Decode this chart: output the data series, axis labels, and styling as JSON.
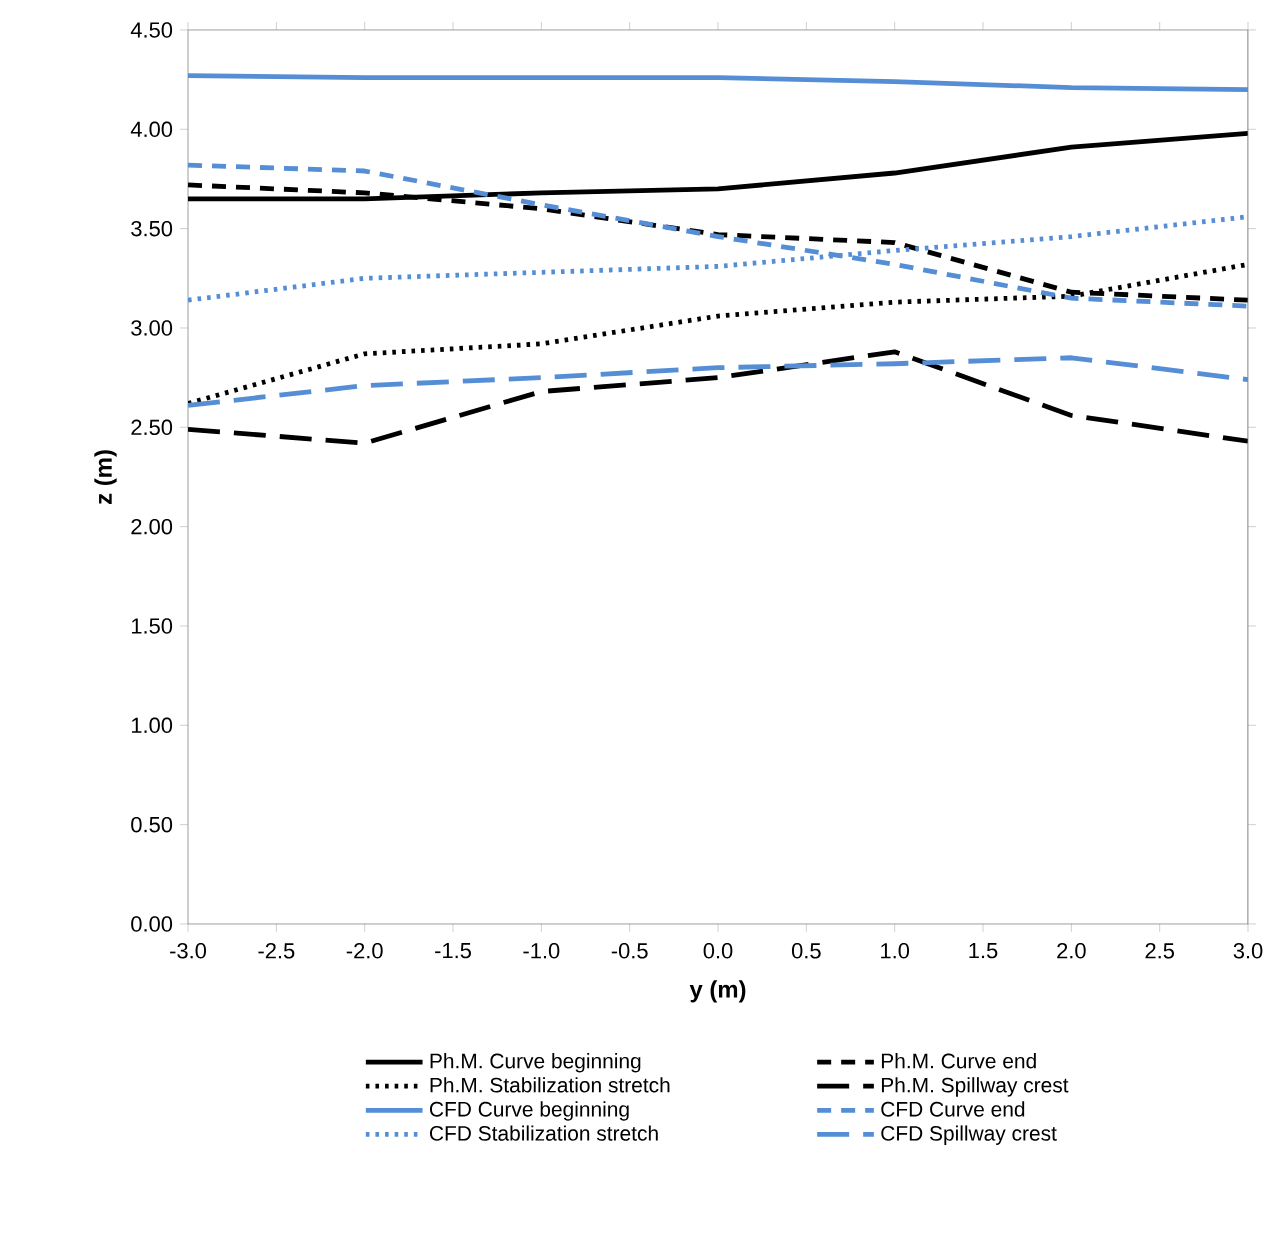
{
  "chart_data": {
    "type": "line",
    "xlabel": "y (m)",
    "ylabel": "z (m)",
    "x": [
      -3,
      -2,
      -1,
      0,
      1,
      2,
      3
    ],
    "xlim": [
      -3,
      3
    ],
    "ylim": [
      0,
      4.5
    ],
    "xticks": [
      {
        "value": -3,
        "label": "-3.0"
      },
      {
        "value": -2.5,
        "label": "-2.5"
      },
      {
        "value": -2,
        "label": "-2.0"
      },
      {
        "value": -1.5,
        "label": "-1.5"
      },
      {
        "value": -1,
        "label": "-1.0"
      },
      {
        "value": -0.5,
        "label": "-0.5"
      },
      {
        "value": 0,
        "label": "0.0"
      },
      {
        "value": 0.5,
        "label": "0.5"
      },
      {
        "value": 1,
        "label": "1.0"
      },
      {
        "value": 1.5,
        "label": "1.5"
      },
      {
        "value": 2,
        "label": "2.0"
      },
      {
        "value": 2.5,
        "label": "2.5"
      },
      {
        "value": 3,
        "label": "3.0"
      }
    ],
    "yticks": [
      {
        "value": 0,
        "label": "0.00"
      },
      {
        "value": 0.5,
        "label": "0.50"
      },
      {
        "value": 1,
        "label": "1.00"
      },
      {
        "value": 1.5,
        "label": "1.50"
      },
      {
        "value": 2,
        "label": "2.00"
      },
      {
        "value": 2.5,
        "label": "2.50"
      },
      {
        "value": 3,
        "label": "3.00"
      },
      {
        "value": 3.5,
        "label": "3.50"
      },
      {
        "value": 4,
        "label": "4.00"
      },
      {
        "value": 4.5,
        "label": "4.50"
      }
    ],
    "grid": false,
    "legend": "bottom",
    "marker": "none",
    "series": [
      {
        "name": "Ph.M. Curve beginning",
        "color": "#000000",
        "line_style": "solid",
        "values": [
          3.65,
          3.65,
          3.68,
          3.7,
          3.78,
          3.91,
          3.98
        ]
      },
      {
        "name": "Ph.M. Curve end",
        "color": "#000000",
        "line_style": "dashed",
        "values": [
          3.72,
          3.68,
          3.6,
          3.47,
          3.43,
          3.18,
          3.14
        ]
      },
      {
        "name": "Ph.M. Stabilization stretch",
        "color": "#000000",
        "line_style": "dotted",
        "values": [
          2.62,
          2.87,
          2.92,
          3.06,
          3.13,
          3.16,
          3.32
        ]
      },
      {
        "name": "Ph.M. Spillway crest",
        "color": "#000000",
        "line_style": "long dashed",
        "values": [
          2.49,
          2.42,
          2.68,
          2.75,
          2.88,
          2.56,
          2.43
        ]
      },
      {
        "name": "CFD Curve beginning",
        "color": "#558ed5",
        "line_style": "solid",
        "values": [
          4.27,
          4.26,
          4.26,
          4.26,
          4.24,
          4.21,
          4.2
        ]
      },
      {
        "name": "CFD Curve end",
        "color": "#558ed5",
        "line_style": "dashed",
        "values": [
          3.82,
          3.79,
          3.62,
          3.46,
          3.32,
          3.15,
          3.11
        ]
      },
      {
        "name": "CFD Stabilization stretch",
        "color": "#558ed5",
        "line_style": "dotted",
        "values": [
          3.14,
          3.25,
          3.28,
          3.31,
          3.39,
          3.46,
          3.56
        ]
      },
      {
        "name": "CFD Spillway crest",
        "color": "#558ed5",
        "line_style": "long dashed",
        "values": [
          2.61,
          2.71,
          2.75,
          2.8,
          2.82,
          2.85,
          2.74
        ]
      }
    ]
  }
}
